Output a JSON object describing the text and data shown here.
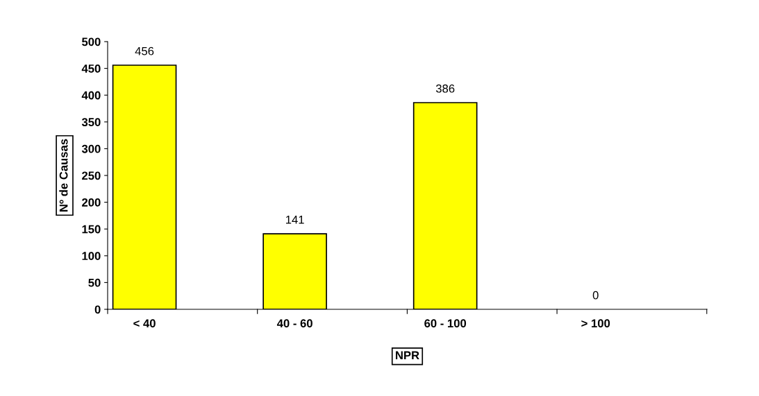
{
  "chart_data": {
    "type": "bar",
    "xlabel": "NPR",
    "ylabel": "Nº de Causas",
    "categories": [
      "< 40",
      "40 - 60",
      "60 - 100",
      "> 100"
    ],
    "values": [
      456,
      141,
      386,
      0
    ],
    "color": "#ffff00",
    "ylim": [
      0,
      500
    ],
    "yticks": [
      0,
      50,
      100,
      150,
      200,
      250,
      300,
      350,
      400,
      450,
      500
    ],
    "data_labels": true,
    "grid": false,
    "legend": false
  }
}
